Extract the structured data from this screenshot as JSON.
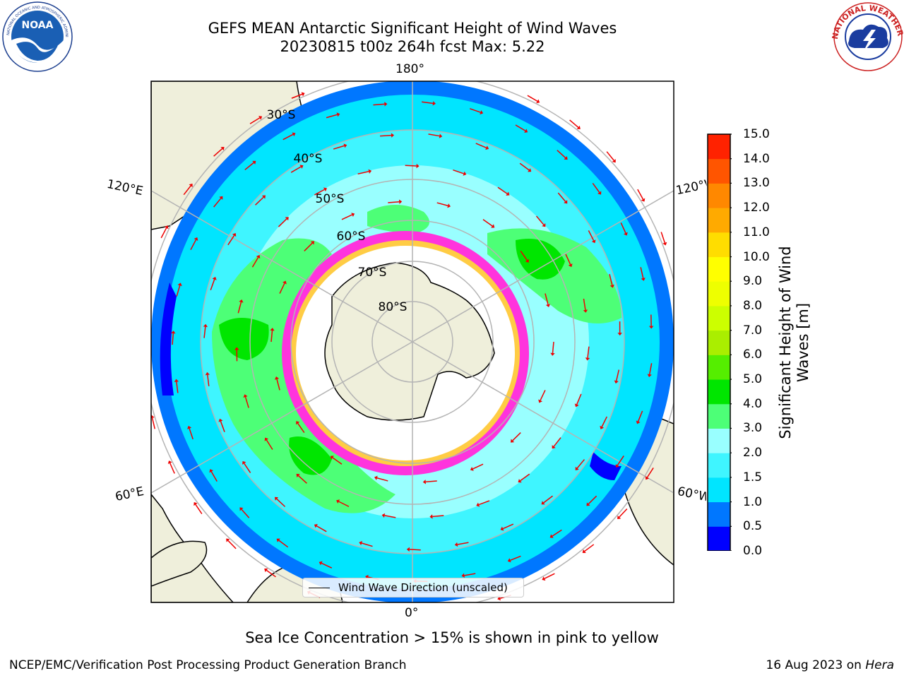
{
  "header": {
    "title_line1": "GEFS MEAN Antarctic Significant Height of Wind Waves",
    "title_line2": "20230815 t00z 264h fcst   Max: 5.22"
  },
  "logos": {
    "noaa": "NOAA",
    "noaa_ring_text": "NATIONAL OCEANIC AND ATMOSPHERIC ADMINISTRATION · U.S. DEPARTMENT OF COMMERCE",
    "nws_ring_text": "NATIONAL WEATHER SERVICE"
  },
  "map": {
    "projection": "south-polar-stereographic",
    "lat_labels": [
      "30°S",
      "40°S",
      "50°S",
      "60°S",
      "70°S",
      "80°S"
    ],
    "lon_labels": {
      "top": "180°",
      "upper_left": "120°E",
      "upper_right": "120°W",
      "lower_left": "60°E",
      "lower_right": "60°W",
      "bottom": "0°"
    },
    "legend": "Wind Wave Direction (unscaled)",
    "field_colors": {
      "land": "#efefdb",
      "ice_free_no_data": "#ffffff",
      "sea_ice_pink": "#ff33dd",
      "sea_ice_yellow": "#ffcc44",
      "arrow": "#ee0000",
      "grid": "#b4b4b4"
    }
  },
  "colorbar": {
    "label": "Significant Height of Wind Waves [m]",
    "ticks": [
      "0.0",
      "0.5",
      "1.0",
      "1.5",
      "2.0",
      "3.0",
      "4.0",
      "5.0",
      "6.0",
      "7.0",
      "8.0",
      "9.0",
      "10.0",
      "11.0",
      "12.0",
      "13.0",
      "14.0",
      "15.0"
    ],
    "colors": [
      "#0000ff",
      "#0077ff",
      "#00e5ff",
      "#3ff5ff",
      "#99ffff",
      "#4dff77",
      "#00e600",
      "#55ee00",
      "#aaee00",
      "#ccff00",
      "#eeff00",
      "#ffff00",
      "#ffdd00",
      "#ffaa00",
      "#ff8800",
      "#ff5500",
      "#ff2200"
    ]
  },
  "caption": "Sea Ice Concentration > 15% is shown in pink to yellow",
  "footer": {
    "left": "NCEP/EMC/Verification Post Processing Product Generation Branch",
    "right_date": "16 Aug 2023 on ",
    "right_machine": "Hera"
  }
}
